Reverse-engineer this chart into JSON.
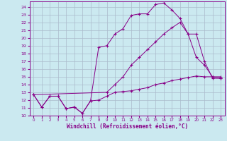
{
  "xlabel": "Windchill (Refroidissement éolien,°C)",
  "bg_color": "#cbe9f0",
  "line_color": "#880088",
  "grid_color": "#aabbcc",
  "xmin": 0,
  "xmax": 23,
  "ymin": 10,
  "ymax": 24,
  "line1_x": [
    0,
    1,
    2,
    3,
    4,
    5,
    6,
    7,
    8,
    9,
    10,
    11,
    12,
    13,
    14,
    15,
    16,
    17,
    18,
    19,
    20,
    21,
    22,
    23
  ],
  "line1_y": [
    12.7,
    11.1,
    12.5,
    12.5,
    10.9,
    11.1,
    10.3,
    11.9,
    12.0,
    12.5,
    13.0,
    13.1,
    13.2,
    13.4,
    13.6,
    14.0,
    14.2,
    14.5,
    14.7,
    14.9,
    15.1,
    15.0,
    15.0,
    15.0
  ],
  "line2_x": [
    0,
    1,
    2,
    3,
    4,
    5,
    6,
    7,
    8,
    9,
    10,
    11,
    12,
    13,
    14,
    15,
    16,
    17,
    18,
    19,
    20,
    21,
    22,
    23
  ],
  "line2_y": [
    12.7,
    11.1,
    12.5,
    12.5,
    10.9,
    11.1,
    10.3,
    11.9,
    18.8,
    19.0,
    20.5,
    21.2,
    22.9,
    23.1,
    23.1,
    24.3,
    24.5,
    23.6,
    22.5,
    20.5,
    17.5,
    16.5,
    15.0,
    14.8
  ],
  "line3_x": [
    0,
    9,
    10,
    11,
    12,
    13,
    14,
    15,
    16,
    17,
    18,
    19,
    20,
    21,
    22,
    23
  ],
  "line3_y": [
    12.7,
    13.0,
    14.0,
    15.0,
    16.5,
    17.5,
    18.5,
    19.5,
    20.5,
    21.3,
    22.0,
    20.5,
    20.5,
    17.0,
    14.8,
    14.8
  ]
}
